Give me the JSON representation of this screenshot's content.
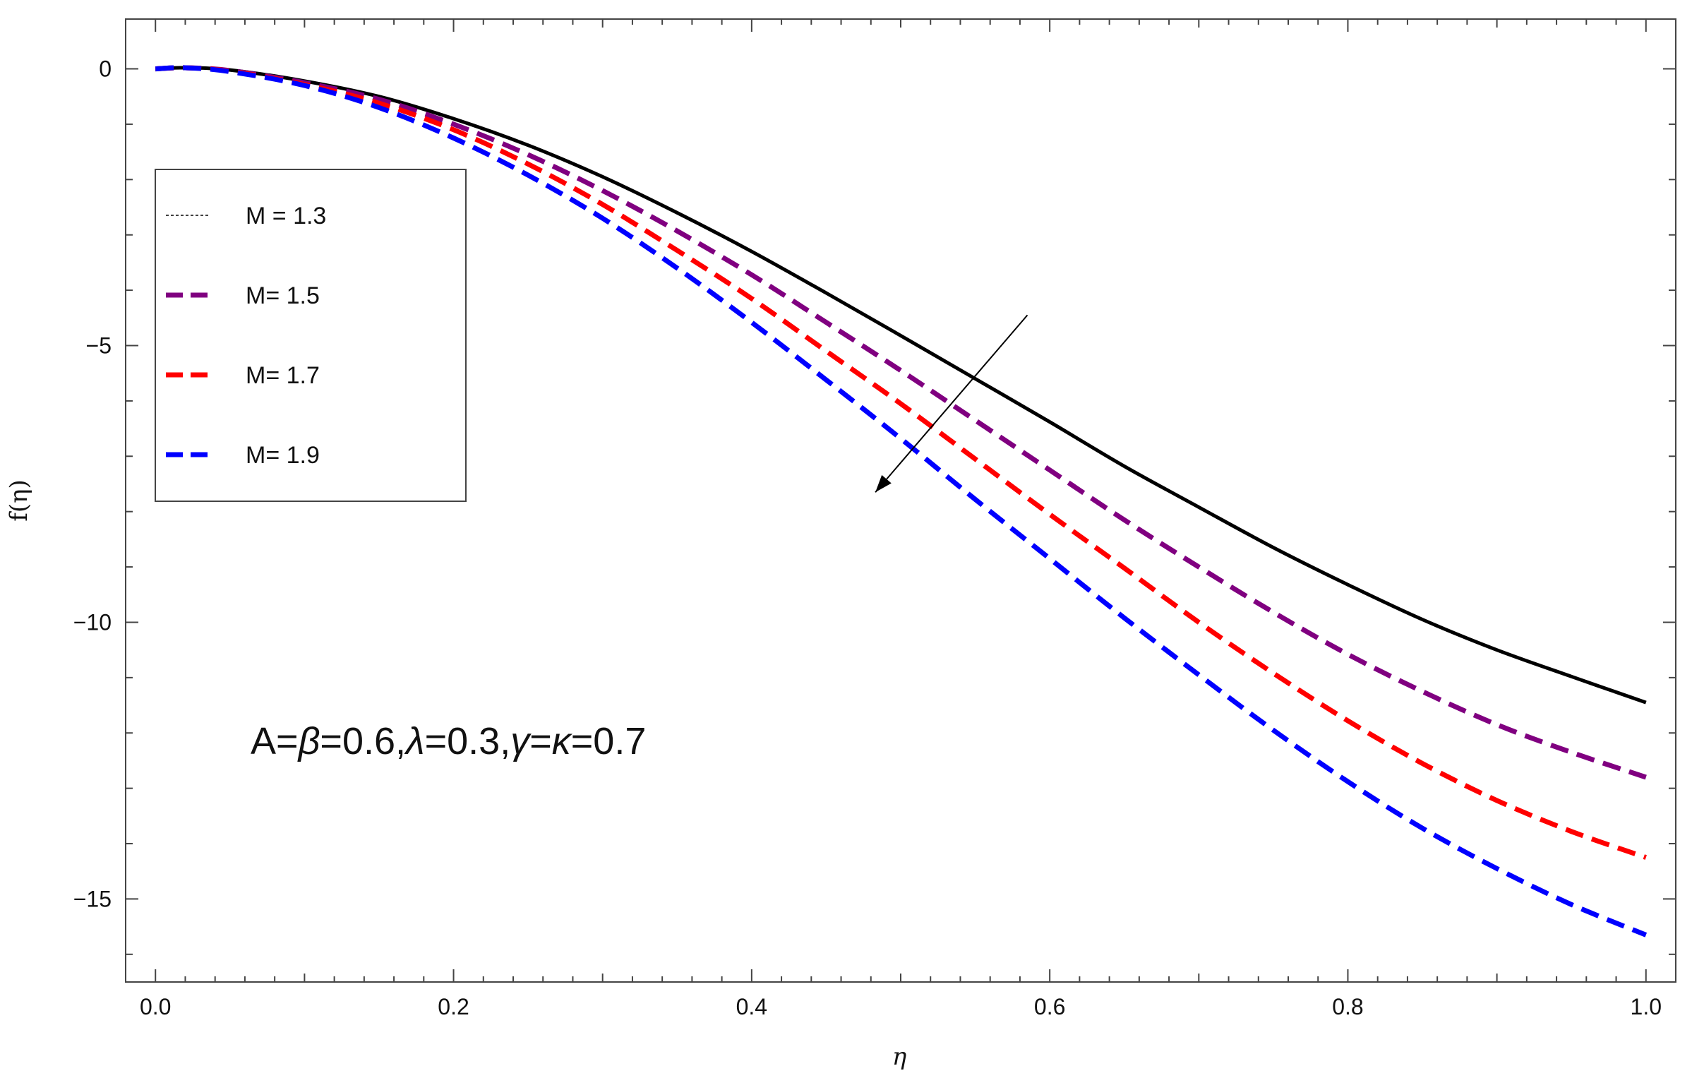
{
  "chart_data": {
    "type": "line",
    "xlabel": "η",
    "ylabel": "f(η)",
    "xlim": [
      -0.02,
      1.02
    ],
    "ylim": [
      -16.5,
      0.9
    ],
    "x_ticks": [
      0.0,
      0.2,
      0.4,
      0.6,
      0.8,
      1.0
    ],
    "x_tick_labels": [
      "0.0",
      "0.2",
      "0.4",
      "0.6",
      "0.8",
      "1.0"
    ],
    "y_ticks": [
      0,
      -5,
      -10,
      -15
    ],
    "y_tick_labels": [
      "0",
      "−5",
      "−10",
      "−15"
    ],
    "grid": false,
    "legend_position": "upper-left",
    "annotation": {
      "parts": [
        {
          "text": "A=",
          "italic": false
        },
        {
          "text": "β",
          "italic": true
        },
        {
          "text": "=0.6,",
          "italic": false
        },
        {
          "text": "λ",
          "italic": true
        },
        {
          "text": "=0.3,",
          "italic": false
        },
        {
          "text": "γ",
          "italic": true
        },
        {
          "text": "=",
          "italic": false
        },
        {
          "text": "κ",
          "italic": true
        },
        {
          "text": "=0.7",
          "italic": false
        }
      ]
    },
    "arrow": {
      "from": [
        0.585,
        -4.45
      ],
      "to": [
        0.483,
        -7.65
      ]
    },
    "series": [
      {
        "name": "M = 1.3",
        "color": "#000000",
        "style": "solid",
        "x": [
          0.0,
          0.02,
          0.05,
          0.1,
          0.15,
          0.2,
          0.25,
          0.3,
          0.35,
          0.4,
          0.45,
          0.5,
          0.55,
          0.6,
          0.65,
          0.7,
          0.75,
          0.8,
          0.85,
          0.9,
          0.95,
          1.0
        ],
        "y": [
          0.0,
          0.02,
          -0.02,
          -0.22,
          -0.5,
          -0.9,
          -1.38,
          -1.95,
          -2.6,
          -3.3,
          -4.05,
          -4.82,
          -5.6,
          -6.38,
          -7.18,
          -7.92,
          -8.65,
          -9.32,
          -9.95,
          -10.5,
          -10.98,
          -11.45
        ]
      },
      {
        "name": "M= 1.5",
        "color": "#800080",
        "style": "dashed",
        "x": [
          0.0,
          0.02,
          0.05,
          0.1,
          0.15,
          0.2,
          0.25,
          0.3,
          0.35,
          0.4,
          0.45,
          0.5,
          0.55,
          0.6,
          0.65,
          0.7,
          0.75,
          0.8,
          0.85,
          0.9,
          0.95,
          1.0
        ],
        "y": [
          0.0,
          0.02,
          -0.03,
          -0.25,
          -0.55,
          -1.0,
          -1.55,
          -2.2,
          -2.93,
          -3.72,
          -4.58,
          -5.45,
          -6.35,
          -7.25,
          -8.15,
          -9.0,
          -9.82,
          -10.58,
          -11.25,
          -11.85,
          -12.35,
          -12.8
        ]
      },
      {
        "name": "M= 1.7",
        "color": "#ff0000",
        "style": "dashed",
        "x": [
          0.0,
          0.02,
          0.05,
          0.1,
          0.15,
          0.2,
          0.25,
          0.3,
          0.35,
          0.4,
          0.45,
          0.5,
          0.55,
          0.6,
          0.65,
          0.7,
          0.75,
          0.8,
          0.85,
          0.9,
          0.95,
          1.0
        ],
        "y": [
          0.0,
          0.02,
          -0.04,
          -0.28,
          -0.62,
          -1.1,
          -1.72,
          -2.45,
          -3.28,
          -4.15,
          -5.1,
          -6.05,
          -7.05,
          -8.05,
          -9.02,
          -10.0,
          -10.92,
          -11.78,
          -12.55,
          -13.22,
          -13.78,
          -14.25
        ]
      },
      {
        "name": "M= 1.9",
        "color": "#0000ff",
        "style": "dashed",
        "x": [
          0.0,
          0.02,
          0.05,
          0.1,
          0.15,
          0.2,
          0.25,
          0.3,
          0.35,
          0.4,
          0.45,
          0.5,
          0.55,
          0.6,
          0.65,
          0.7,
          0.75,
          0.8,
          0.85,
          0.9,
          0.95,
          1.0
        ],
        "y": [
          0.0,
          0.02,
          -0.05,
          -0.3,
          -0.7,
          -1.25,
          -1.92,
          -2.7,
          -3.6,
          -4.58,
          -5.62,
          -6.68,
          -7.78,
          -8.85,
          -9.92,
          -10.95,
          -11.95,
          -12.88,
          -13.72,
          -14.45,
          -15.1,
          -15.65
        ]
      }
    ]
  }
}
